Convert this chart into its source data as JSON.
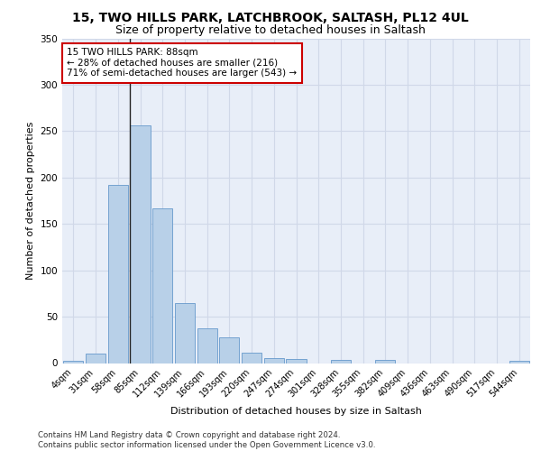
{
  "title1": "15, TWO HILLS PARK, LATCHBROOK, SALTASH, PL12 4UL",
  "title2": "Size of property relative to detached houses in Saltash",
  "xlabel": "Distribution of detached houses by size in Saltash",
  "ylabel": "Number of detached properties",
  "bar_labels": [
    "4sqm",
    "31sqm",
    "58sqm",
    "85sqm",
    "112sqm",
    "139sqm",
    "166sqm",
    "193sqm",
    "220sqm",
    "247sqm",
    "274sqm",
    "301sqm",
    "328sqm",
    "355sqm",
    "382sqm",
    "409sqm",
    "436sqm",
    "463sqm",
    "490sqm",
    "517sqm",
    "544sqm"
  ],
  "bar_values": [
    2,
    10,
    192,
    256,
    167,
    65,
    37,
    28,
    11,
    5,
    4,
    0,
    3,
    0,
    3,
    0,
    0,
    0,
    0,
    0,
    2
  ],
  "bar_color": "#b8d0e8",
  "bar_edge_color": "#6699cc",
  "grid_color": "#d0d8e8",
  "background_color": "#e8eef8",
  "annotation_line1": "15 TWO HILLS PARK: 88sqm",
  "annotation_line2": "← 28% of detached houses are smaller (216)",
  "annotation_line3": "71% of semi-detached houses are larger (543) →",
  "annotation_box_color": "#ffffff",
  "annotation_box_edge": "#cc0000",
  "line_bar_index": 3,
  "ylim": [
    0,
    350
  ],
  "yticks": [
    0,
    50,
    100,
    150,
    200,
    250,
    300,
    350
  ],
  "footer_text": "Contains HM Land Registry data © Crown copyright and database right 2024.\nContains public sector information licensed under the Open Government Licence v3.0.",
  "title1_fontsize": 10,
  "title2_fontsize": 9,
  "ylabel_fontsize": 8,
  "xlabel_fontsize": 8,
  "tick_fontsize": 7,
  "annot_fontsize": 7.5
}
